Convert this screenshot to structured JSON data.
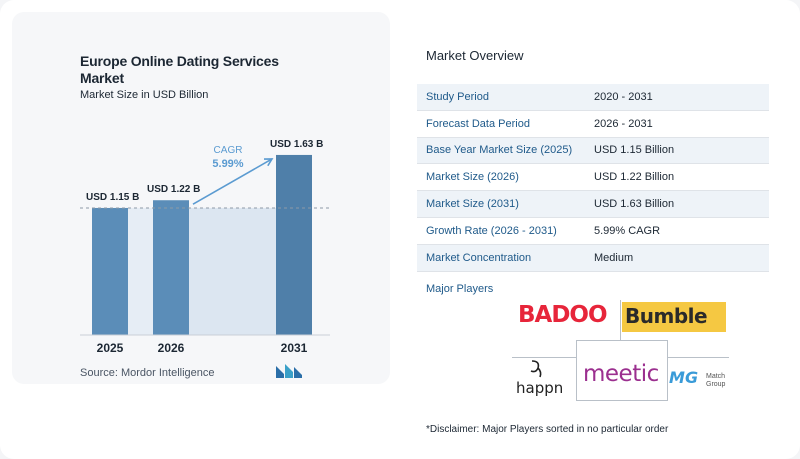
{
  "chart_data": {
    "type": "bar",
    "title": "Europe Online Dating Services Market",
    "subtitle": "Market Size in USD Billion",
    "categories": [
      "2025",
      "2026",
      "2031"
    ],
    "values": [
      1.15,
      1.22,
      1.63
    ],
    "data_labels": [
      "USD 1.15 B",
      "USD 1.22 B",
      "USD 1.63 B"
    ],
    "annotation": {
      "label": "CAGR",
      "value": "5.99%"
    },
    "ylim": [
      0,
      1.72
    ],
    "grid": false,
    "colors": {
      "bar": "#5b8db8",
      "bar_dark": "#4f7fa9",
      "band": "#dce6f1",
      "annotation": "#5b9bd1",
      "reference_line": "#8e9aa6"
    }
  },
  "source": "Source:  Mordor Intelligence",
  "overview": {
    "title": "Market Overview",
    "rows": [
      {
        "label": "Study Period",
        "value": "2020 - 2031"
      },
      {
        "label": "Forecast Data Period",
        "value": "2026 - 2031"
      },
      {
        "label": "Base Year Market Size (2025)",
        "value": "USD 1.15 Billion"
      },
      {
        "label": "Market Size (2026)",
        "value": "USD 1.22 Billion"
      },
      {
        "label": "Market Size (2031)",
        "value": "USD 1.63 Billion"
      },
      {
        "label": "Growth Rate (2026 - 2031)",
        "value": "5.99% CAGR"
      },
      {
        "label": "Market Concentration",
        "value": "Medium"
      }
    ]
  },
  "players": {
    "label": "Major Players",
    "logos": {
      "badoo": "BADOO",
      "bumble": "Bumble",
      "happn": "happn",
      "meetic": "meetic",
      "match_group": "Match Group"
    }
  },
  "disclaimer": "*Disclaimer: Major Players sorted in no particular order"
}
